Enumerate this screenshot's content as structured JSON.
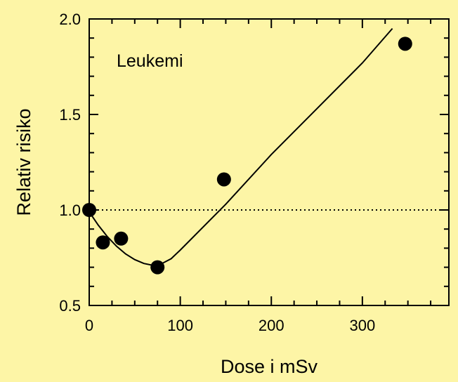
{
  "background_color": "#fdf5a6",
  "ink_color": "#000000",
  "chart_data": {
    "type": "scatter",
    "title": "",
    "annotation": "Leukemi",
    "xlabel": "Dose i mSv",
    "ylabel": "Relativ risiko",
    "xlim": [
      0,
      395
    ],
    "ylim": [
      0.5,
      2.0
    ],
    "x_ticks": [
      0,
      100,
      200,
      300
    ],
    "y_ticks": [
      0.5,
      1.0,
      1.5,
      2.0
    ],
    "x_tick_labels": [
      "0",
      "100",
      "200",
      "300"
    ],
    "y_tick_labels": [
      "0.5",
      "1.0",
      "1.5",
      "2.0"
    ],
    "reference_line": {
      "y": 1.0,
      "style": "dotted"
    },
    "points": [
      {
        "x": 0,
        "y": 1.0
      },
      {
        "x": 15,
        "y": 0.83
      },
      {
        "x": 35,
        "y": 0.85
      },
      {
        "x": 75,
        "y": 0.7
      },
      {
        "x": 148,
        "y": 1.16
      },
      {
        "x": 347,
        "y": 1.87
      }
    ],
    "fit_curve": [
      {
        "x": 0,
        "y": 0.99
      },
      {
        "x": 10,
        "y": 0.92
      },
      {
        "x": 20,
        "y": 0.86
      },
      {
        "x": 30,
        "y": 0.81
      },
      {
        "x": 40,
        "y": 0.77
      },
      {
        "x": 50,
        "y": 0.74
      },
      {
        "x": 60,
        "y": 0.72
      },
      {
        "x": 70,
        "y": 0.71
      },
      {
        "x": 80,
        "y": 0.72
      },
      {
        "x": 90,
        "y": 0.745
      },
      {
        "x": 100,
        "y": 0.79
      },
      {
        "x": 150,
        "y": 1.03
      },
      {
        "x": 200,
        "y": 1.29
      },
      {
        "x": 250,
        "y": 1.53
      },
      {
        "x": 300,
        "y": 1.77
      },
      {
        "x": 333,
        "y": 1.95
      }
    ],
    "grid": false
  }
}
